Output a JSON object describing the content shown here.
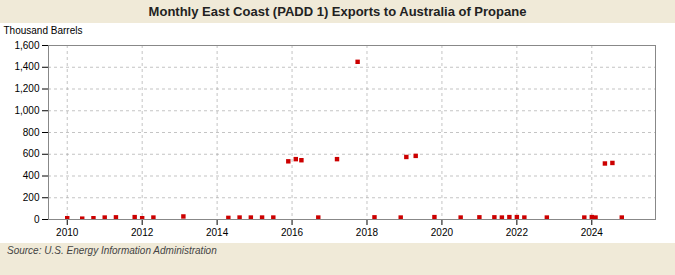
{
  "chart_data": {
    "type": "scatter",
    "title": "Monthly East Coast (PADD 1) Exports to Australia of Propane",
    "ylabel": "Thousand Barrels",
    "source": "Source: U.S. Energy Information Administration",
    "color": "#cc0000",
    "marker": "square",
    "grid": true,
    "xlim": [
      2009.5,
      2025.7
    ],
    "xticks": [
      2010,
      2012,
      2014,
      2016,
      2018,
      2020,
      2022,
      2024
    ],
    "ylim": [
      0,
      1600
    ],
    "yticks": [
      0,
      200,
      400,
      600,
      800,
      {
        "value": 1000,
        "label": "1,000"
      },
      {
        "value": 1200,
        "label": "1,200"
      },
      {
        "value": 1400,
        "label": "1,400"
      },
      {
        "value": 1600,
        "label": "1,600"
      }
    ],
    "x": [
      2010.0,
      2010.4,
      2010.7,
      2011.0,
      2011.3,
      2011.8,
      2012.0,
      2012.3,
      2013.1,
      2014.3,
      2014.6,
      2014.9,
      2015.2,
      2015.5,
      2015.9,
      2016.1,
      2016.25,
      2016.7,
      2017.2,
      2017.75,
      2018.2,
      2018.9,
      2019.05,
      2019.3,
      2019.8,
      2020.5,
      2021.0,
      2021.4,
      2021.6,
      2021.8,
      2022.0,
      2022.2,
      2022.8,
      2023.8,
      2024.0,
      2024.1,
      2024.35,
      2024.55,
      2024.8
    ],
    "values": [
      12,
      8,
      12,
      18,
      20,
      22,
      12,
      18,
      28,
      15,
      18,
      18,
      18,
      18,
      535,
      555,
      545,
      18,
      555,
      1450,
      20,
      18,
      575,
      585,
      22,
      18,
      20,
      20,
      18,
      22,
      22,
      18,
      18,
      18,
      22,
      18,
      515,
      520,
      18
    ]
  }
}
